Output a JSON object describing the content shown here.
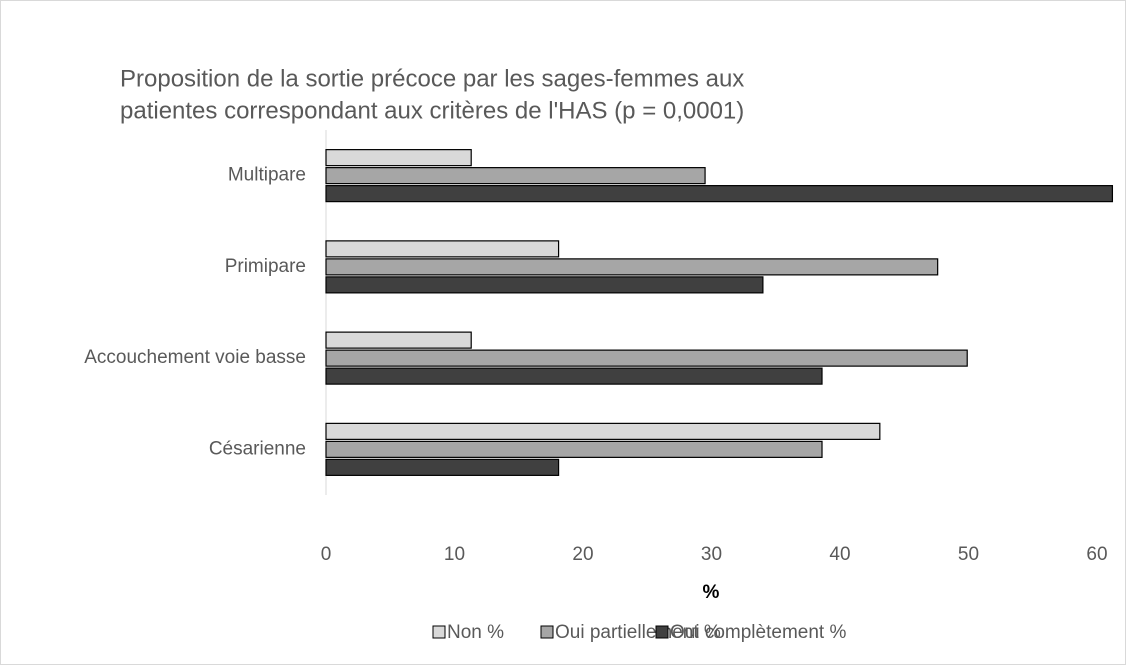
{
  "chart_data": {
    "type": "hbar",
    "title": [
      "Proposition de la sortie précoce par les sages-femmes aux",
      "patientes correspondant aux critères de l'HAS (p = 0,0001)"
    ],
    "categories": [
      "Multipare",
      "Primipare",
      "Accouchement voie basse",
      "Césarienne"
    ],
    "series": [
      {
        "name": "Non %",
        "color": "#d9d9d9",
        "values": [
          11.3,
          18.1,
          11.3,
          43.1
        ]
      },
      {
        "name": "Oui partiellement %",
        "color": "#a6a6a6",
        "values": [
          29.5,
          47.6,
          49.9,
          38.6
        ]
      },
      {
        "name": "Oui complètement %",
        "color": "#404040",
        "values": [
          61.2,
          34.0,
          38.6,
          18.1
        ]
      }
    ],
    "xlabel": "%",
    "xlim": [
      0,
      60
    ],
    "xticks": [
      0,
      10,
      20,
      30,
      40,
      50,
      60
    ],
    "grid": false,
    "legend": "bottom"
  }
}
